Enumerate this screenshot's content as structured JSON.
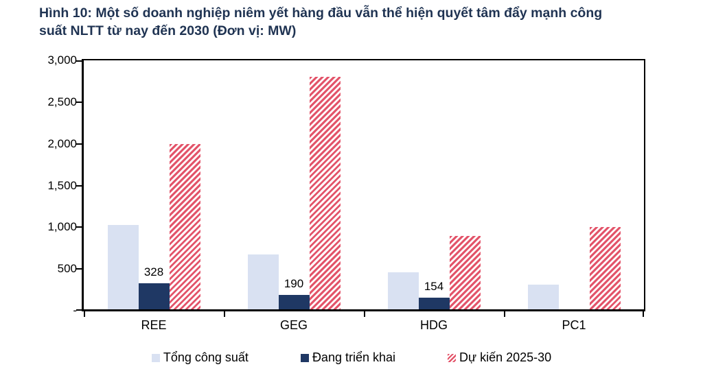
{
  "figure": {
    "title": "Hình 10: Một số doanh nghiệp niêm yết hàng đầu vẫn thể hiện quyết tâm đẩy mạnh công suất NLTT từ nay đến 2030 (Đơn vị: MW)",
    "title_lines": [
      "Hình 10: Một số doanh nghiệp niêm yết hàng đầu vẫn thể hiện quyết tâm đẩy mạnh công",
      "suất NLTT từ nay đến 2030 (Đơn vị: MW)"
    ],
    "unit": "MW"
  },
  "colors": {
    "title": "#1f3352",
    "axis": "#000000",
    "series_total": "#d9e1f2",
    "series_ongoing": "#1f3864",
    "series_planned": "#e3546a",
    "background": "#ffffff"
  },
  "chart_data": {
    "type": "bar",
    "title": "Hình 10: Một số doanh nghiệp niêm yết hàng đầu vẫn thể hiện quyết tâm đẩy mạnh công suất NLTT từ nay đến 2030 (Đơn vị: MW)",
    "xlabel": "",
    "ylabel": "MW",
    "categories": [
      "REE",
      "GEG",
      "HDG",
      "PC1"
    ],
    "series": [
      {
        "name": "Tổng công suất",
        "color": "#d9e1f2",
        "pattern": "solid",
        "values": [
          1030,
          670,
          460,
          310
        ],
        "data_labels": [
          "",
          "",
          "",
          ""
        ]
      },
      {
        "name": "Đang triển khai",
        "color": "#1f3864",
        "pattern": "solid",
        "values": [
          328,
          190,
          154,
          0
        ],
        "data_labels": [
          "328",
          "190",
          "154",
          ""
        ]
      },
      {
        "name": "Dự kiến 2025-30",
        "color": "#e3546a",
        "pattern": "diagonal-hatch",
        "values": [
          2000,
          2800,
          900,
          1000
        ],
        "data_labels": [
          "",
          "",
          "",
          ""
        ]
      }
    ],
    "ylim": [
      0,
      3000
    ],
    "yticks": [
      {
        "v": 3000,
        "label": "3,000"
      },
      {
        "v": 2500,
        "label": "2,500"
      },
      {
        "v": 2000,
        "label": "2,000"
      },
      {
        "v": 1500,
        "label": "1,500"
      },
      {
        "v": 1000,
        "label": "1,000"
      },
      {
        "v": 500,
        "label": "500"
      },
      {
        "v": 0,
        "label": "-"
      }
    ],
    "grid": false,
    "legend_position": "bottom"
  }
}
